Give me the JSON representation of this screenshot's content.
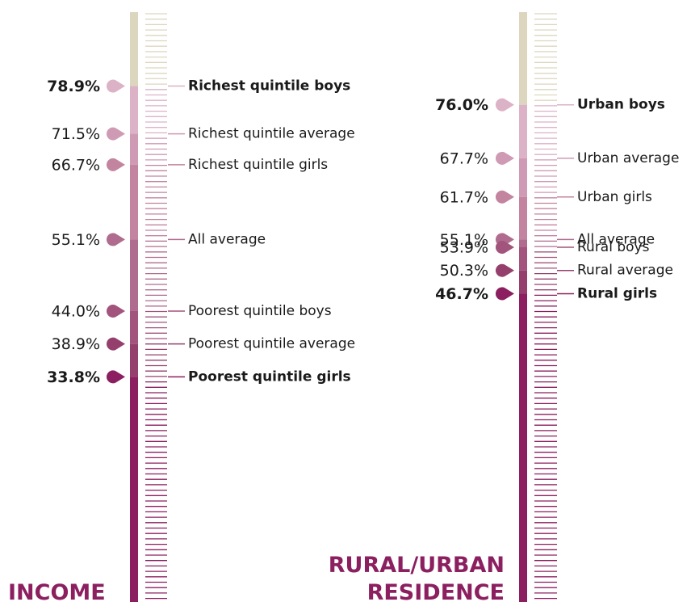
{
  "chart_data": [
    {
      "type": "scale",
      "title": [
        "INCOME"
      ],
      "categories": [
        "Richest quintile boys",
        "Richest quintile average",
        "Richest quintile girls",
        "All average",
        "Poorest quintile boys",
        "Poorest quintile average",
        "Poorest quintile girls"
      ],
      "values": [
        78.9,
        71.5,
        66.7,
        55.1,
        44.0,
        38.9,
        33.8
      ],
      "value_labels": [
        "78.9%",
        "71.5%",
        "66.7%",
        "55.1%",
        "44.0%",
        "38.9%",
        "33.8%"
      ],
      "colors": [
        "#dcb2c6",
        "#cf9ab4",
        "#c2849f",
        "#b06c8e",
        "#a2547c",
        "#95406c",
        "#8b1f5f"
      ],
      "bold": [
        true,
        false,
        false,
        false,
        false,
        false,
        true
      ],
      "track_color": "#ddd6bf",
      "ylim": [
        0,
        90
      ]
    },
    {
      "type": "scale",
      "title": [
        "RURAL/URBAN",
        "RESIDENCE"
      ],
      "categories": [
        "Urban boys",
        "Urban average",
        "Urban girls",
        "All average",
        "Rural boys",
        "Rural average",
        "Rural girls"
      ],
      "values": [
        76.0,
        67.7,
        61.7,
        55.1,
        53.9,
        50.3,
        46.7
      ],
      "value_labels": [
        "76.0%",
        "67.7%",
        "61.7%",
        "55.1%",
        "53.9%",
        "50.3%",
        "46.7%"
      ],
      "colors": [
        "#dcb2c6",
        "#cf9ab4",
        "#c2849f",
        "#b06c8e",
        "#a2547c",
        "#95406c",
        "#8b1f5f"
      ],
      "bold": [
        true,
        false,
        false,
        false,
        false,
        false,
        true
      ],
      "track_color": "#ddd6bf",
      "ylim": [
        0,
        90
      ]
    }
  ]
}
